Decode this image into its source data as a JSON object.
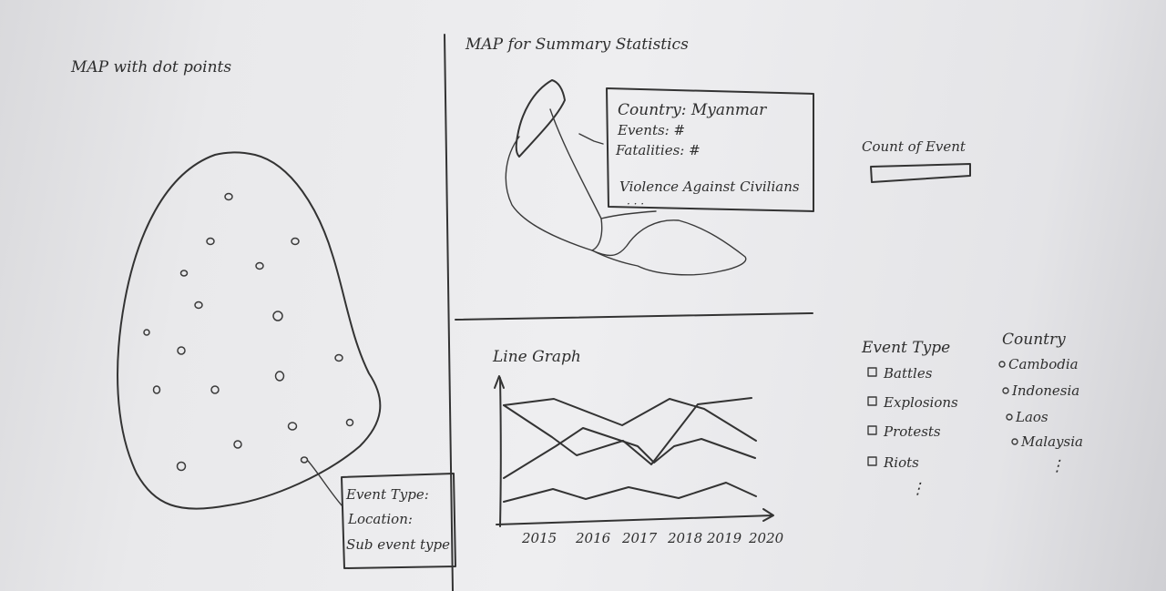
{
  "left_panel": {
    "title": "MAP with dot points",
    "tooltip": {
      "line1": "Event Type:",
      "line2": "Location:",
      "line3": "Sub event type"
    }
  },
  "top_right_panel": {
    "title": "MAP for Summary Statistics",
    "tooltip": {
      "country": "Country: Myanmar",
      "events": "Events:  #",
      "fatalities": "Fatalities: #",
      "sub": "Violence Against Civilians"
    },
    "legend_label": "Count of Event"
  },
  "line_panel": {
    "title": "Line Graph"
  },
  "chart_data": {
    "type": "line",
    "title": "Line Graph",
    "x": [
      "2015",
      "2016",
      "2017",
      "2018",
      "2019",
      "2020"
    ]
  },
  "filters": {
    "event_type": {
      "heading": "Event Type",
      "options": [
        "Battles",
        "Explosions",
        "Protests",
        "Riots"
      ],
      "more": "⋮"
    },
    "country": {
      "heading": "Country",
      "options": [
        "Cambodia",
        "Indonesia",
        "Laos",
        "Malaysia"
      ],
      "more": "⋮"
    }
  }
}
